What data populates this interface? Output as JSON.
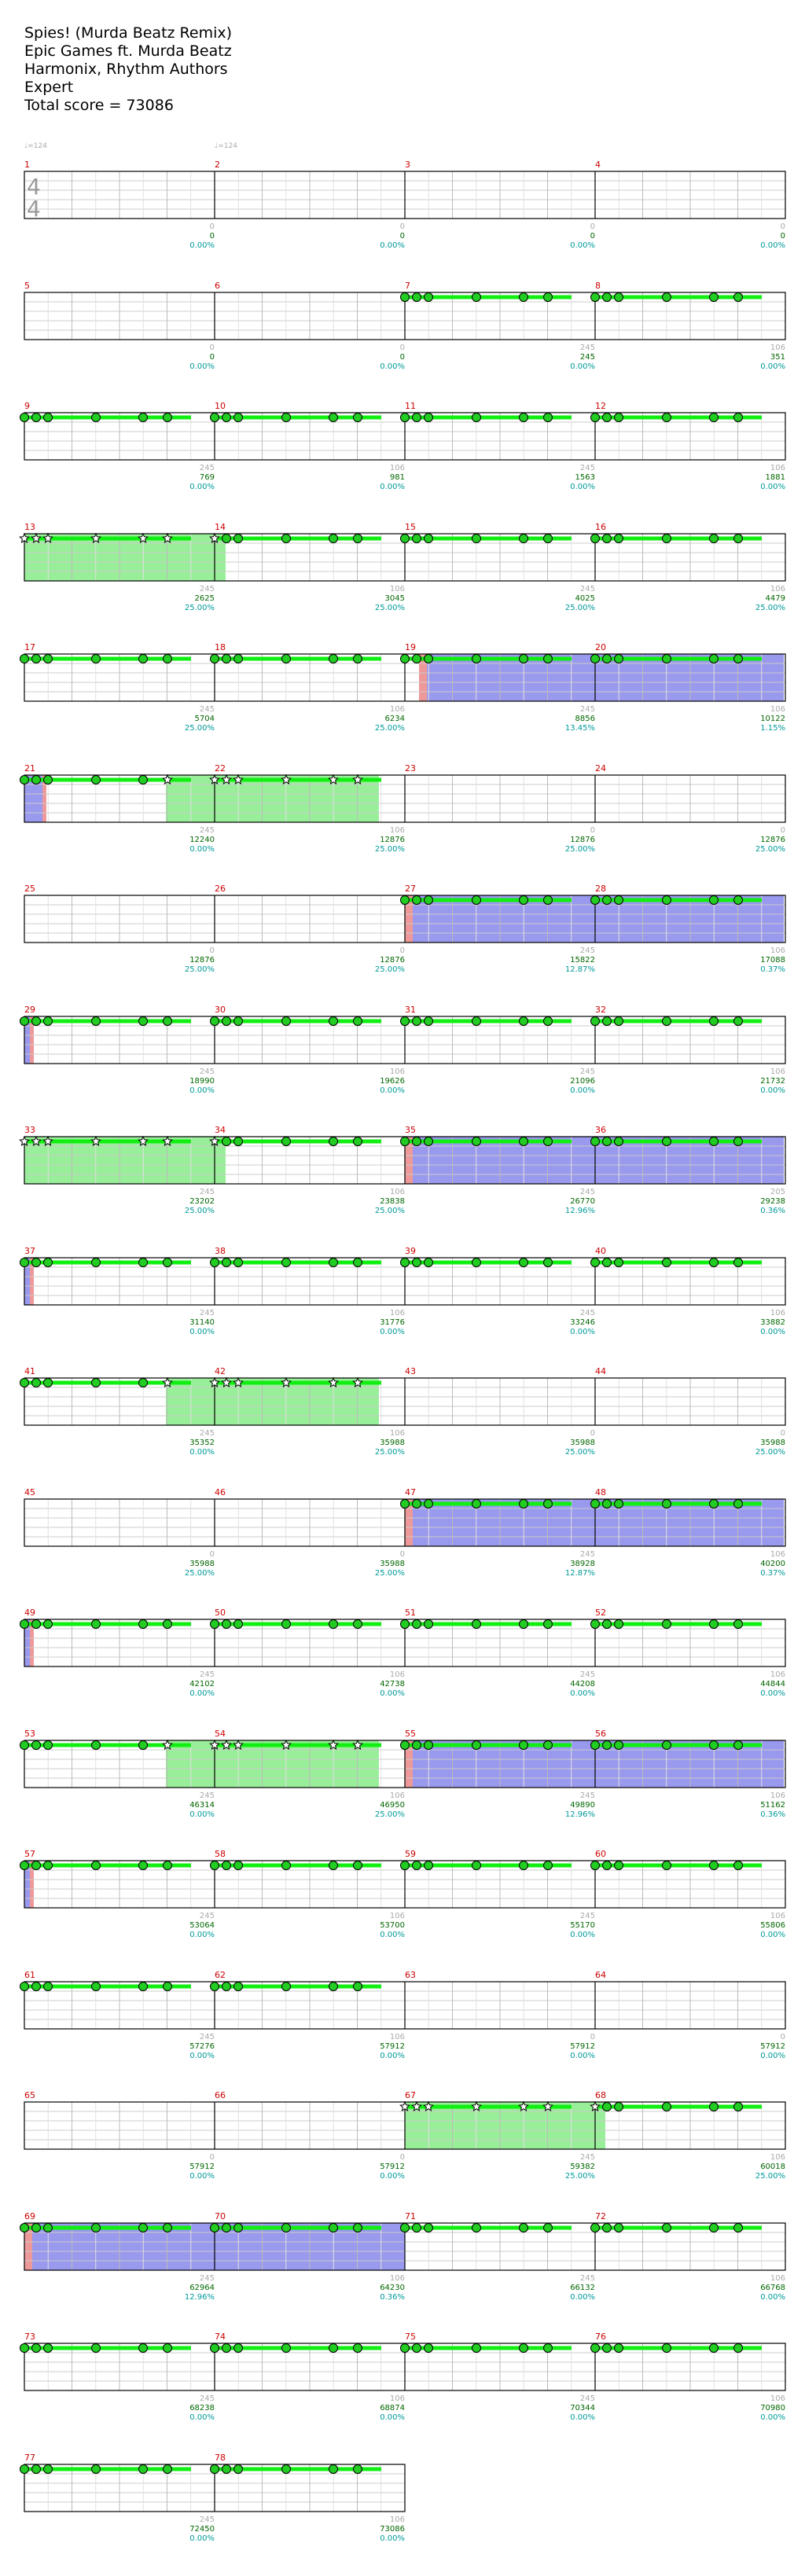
{
  "song": {
    "title": "Spies! (Murda Beatz Remix)",
    "artist": "Epic Games ft. Murda Beatz",
    "charter": "Harmonix, Rhythm Authors",
    "difficulty": "Expert",
    "total_score_label": "Total score = 73086"
  },
  "tempo_markers": [
    "♩=124",
    "♩=124"
  ],
  "time_signature": {
    "numerator": "4",
    "denominator": "4"
  },
  "colors": {
    "measure_number": "#cc0000",
    "note_fill": "#22cc22",
    "sustain": "#11ee11",
    "star_power": "#99ee99",
    "overdrive": "#9999ee",
    "overdrive_start": "#ee9999",
    "score": "#006600",
    "percent": "#009999",
    "gray": "#aaaaaa",
    "staff_line": "#cccccc"
  },
  "rows": [
    {
      "measures": [
        "1",
        "2",
        "3",
        "4"
      ],
      "markers": [
        {
          "gray": "",
          "score": "",
          "pct": ""
        },
        {
          "gray": "0",
          "score": "0",
          "pct": "0.00%"
        },
        {
          "gray": "0",
          "score": "0",
          "pct": "0.00%"
        },
        {
          "gray": "0",
          "score": "0",
          "pct": "0.00%"
        },
        {
          "gray": "0",
          "score": "0",
          "pct": "0.00%"
        }
      ]
    },
    {
      "measures": [
        "5",
        "6",
        "7",
        "8"
      ],
      "markers": [
        {
          "gray": "",
          "score": "",
          "pct": ""
        },
        {
          "gray": "0",
          "score": "0",
          "pct": "0.00%"
        },
        {
          "gray": "0",
          "score": "0",
          "pct": "0.00%"
        },
        {
          "gray": "245",
          "score": "245",
          "pct": "0.00%"
        },
        {
          "gray": "106",
          "score": "351",
          "pct": "0.00%"
        }
      ]
    },
    {
      "measures": [
        "9",
        "10",
        "11",
        "12"
      ],
      "markers": [
        {
          "gray": "",
          "score": "",
          "pct": ""
        },
        {
          "gray": "245",
          "score": "769",
          "pct": "0.00%"
        },
        {
          "gray": "106",
          "score": "981",
          "pct": "0.00%"
        },
        {
          "gray": "245",
          "score": "1563",
          "pct": "0.00%"
        },
        {
          "gray": "106",
          "score": "1881",
          "pct": "0.00%"
        }
      ]
    },
    {
      "measures": [
        "13",
        "14",
        "15",
        "16"
      ],
      "markers": [
        {
          "gray": "",
          "score": "",
          "pct": ""
        },
        {
          "gray": "245",
          "score": "2625",
          "pct": "25.00%"
        },
        {
          "gray": "106",
          "score": "3045",
          "pct": "25.00%"
        },
        {
          "gray": "245",
          "score": "4025",
          "pct": "25.00%"
        },
        {
          "gray": "106",
          "score": "4479",
          "pct": "25.00%"
        }
      ]
    },
    {
      "measures": [
        "17",
        "18",
        "19",
        "20"
      ],
      "markers": [
        {
          "gray": "",
          "score": "",
          "pct": ""
        },
        {
          "gray": "245",
          "score": "5704",
          "pct": "25.00%"
        },
        {
          "gray": "106",
          "score": "6234",
          "pct": "25.00%"
        },
        {
          "gray": "245",
          "score": "8856",
          "pct": "13.45%"
        },
        {
          "gray": "106",
          "score": "10122",
          "pct": "1.15%"
        }
      ]
    },
    {
      "measures": [
        "21",
        "22",
        "23",
        "24"
      ],
      "markers": [
        {
          "gray": "",
          "score": "",
          "pct": ""
        },
        {
          "gray": "245",
          "score": "12240",
          "pct": "0.00%"
        },
        {
          "gray": "106",
          "score": "12876",
          "pct": "25.00%"
        },
        {
          "gray": "0",
          "score": "12876",
          "pct": "25.00%"
        },
        {
          "gray": "0",
          "score": "12876",
          "pct": "25.00%"
        }
      ]
    },
    {
      "measures": [
        "25",
        "26",
        "27",
        "28"
      ],
      "markers": [
        {
          "gray": "",
          "score": "",
          "pct": ""
        },
        {
          "gray": "0",
          "score": "12876",
          "pct": "25.00%"
        },
        {
          "gray": "0",
          "score": "12876",
          "pct": "25.00%"
        },
        {
          "gray": "245",
          "score": "15822",
          "pct": "12.87%"
        },
        {
          "gray": "106",
          "score": "17088",
          "pct": "0.37%"
        }
      ]
    },
    {
      "measures": [
        "29",
        "30",
        "31",
        "32"
      ],
      "markers": [
        {
          "gray": "",
          "score": "",
          "pct": ""
        },
        {
          "gray": "245",
          "score": "18990",
          "pct": "0.00%"
        },
        {
          "gray": "106",
          "score": "19626",
          "pct": "0.00%"
        },
        {
          "gray": "245",
          "score": "21096",
          "pct": "0.00%"
        },
        {
          "gray": "106",
          "score": "21732",
          "pct": "0.00%"
        }
      ]
    },
    {
      "measures": [
        "33",
        "34",
        "35",
        "36"
      ],
      "markers": [
        {
          "gray": "",
          "score": "",
          "pct": ""
        },
        {
          "gray": "245",
          "score": "23202",
          "pct": "25.00%"
        },
        {
          "gray": "106",
          "score": "23838",
          "pct": "25.00%"
        },
        {
          "gray": "245",
          "score": "26770",
          "pct": "12.96%"
        },
        {
          "gray": "205",
          "score": "29238",
          "pct": "0.36%"
        }
      ]
    },
    {
      "measures": [
        "37",
        "38",
        "39",
        "40"
      ],
      "markers": [
        {
          "gray": "",
          "score": "",
          "pct": ""
        },
        {
          "gray": "245",
          "score": "31140",
          "pct": "0.00%"
        },
        {
          "gray": "106",
          "score": "31776",
          "pct": "0.00%"
        },
        {
          "gray": "245",
          "score": "33246",
          "pct": "0.00%"
        },
        {
          "gray": "106",
          "score": "33882",
          "pct": "0.00%"
        }
      ]
    },
    {
      "measures": [
        "41",
        "42",
        "43",
        "44"
      ],
      "markers": [
        {
          "gray": "",
          "score": "",
          "pct": ""
        },
        {
          "gray": "245",
          "score": "35352",
          "pct": "0.00%"
        },
        {
          "gray": "106",
          "score": "35988",
          "pct": "25.00%"
        },
        {
          "gray": "0",
          "score": "35988",
          "pct": "25.00%"
        },
        {
          "gray": "0",
          "score": "35988",
          "pct": "25.00%"
        }
      ]
    },
    {
      "measures": [
        "45",
        "46",
        "47",
        "48"
      ],
      "markers": [
        {
          "gray": "",
          "score": "",
          "pct": ""
        },
        {
          "gray": "0",
          "score": "35988",
          "pct": "25.00%"
        },
        {
          "gray": "0",
          "score": "35988",
          "pct": "25.00%"
        },
        {
          "gray": "245",
          "score": "38928",
          "pct": "12.87%"
        },
        {
          "gray": "106",
          "score": "40200",
          "pct": "0.37%"
        }
      ]
    },
    {
      "measures": [
        "49",
        "50",
        "51",
        "52"
      ],
      "markers": [
        {
          "gray": "",
          "score": "",
          "pct": ""
        },
        {
          "gray": "245",
          "score": "42102",
          "pct": "0.00%"
        },
        {
          "gray": "106",
          "score": "42738",
          "pct": "0.00%"
        },
        {
          "gray": "245",
          "score": "44208",
          "pct": "0.00%"
        },
        {
          "gray": "106",
          "score": "44844",
          "pct": "0.00%"
        }
      ]
    },
    {
      "measures": [
        "53",
        "54",
        "55",
        "56"
      ],
      "markers": [
        {
          "gray": "",
          "score": "",
          "pct": ""
        },
        {
          "gray": "245",
          "score": "46314",
          "pct": "0.00%"
        },
        {
          "gray": "106",
          "score": "46950",
          "pct": "25.00%"
        },
        {
          "gray": "245",
          "score": "49890",
          "pct": "12.96%"
        },
        {
          "gray": "106",
          "score": "51162",
          "pct": "0.36%"
        }
      ]
    },
    {
      "measures": [
        "57",
        "58",
        "59",
        "60"
      ],
      "markers": [
        {
          "gray": "",
          "score": "",
          "pct": ""
        },
        {
          "gray": "245",
          "score": "53064",
          "pct": "0.00%"
        },
        {
          "gray": "106",
          "score": "53700",
          "pct": "0.00%"
        },
        {
          "gray": "245",
          "score": "55170",
          "pct": "0.00%"
        },
        {
          "gray": "106",
          "score": "55806",
          "pct": "0.00%"
        }
      ]
    },
    {
      "measures": [
        "61",
        "62",
        "63",
        "64"
      ],
      "markers": [
        {
          "gray": "",
          "score": "",
          "pct": ""
        },
        {
          "gray": "245",
          "score": "57276",
          "pct": "0.00%"
        },
        {
          "gray": "106",
          "score": "57912",
          "pct": "0.00%"
        },
        {
          "gray": "0",
          "score": "57912",
          "pct": "0.00%"
        },
        {
          "gray": "0",
          "score": "57912",
          "pct": "0.00%"
        }
      ]
    },
    {
      "measures": [
        "65",
        "66",
        "67",
        "68"
      ],
      "markers": [
        {
          "gray": "",
          "score": "",
          "pct": ""
        },
        {
          "gray": "0",
          "score": "57912",
          "pct": "0.00%"
        },
        {
          "gray": "0",
          "score": "57912",
          "pct": "0.00%"
        },
        {
          "gray": "245",
          "score": "59382",
          "pct": "25.00%"
        },
        {
          "gray": "106",
          "score": "60018",
          "pct": "25.00%"
        }
      ]
    },
    {
      "measures": [
        "69",
        "70",
        "71",
        "72"
      ],
      "markers": [
        {
          "gray": "",
          "score": "",
          "pct": ""
        },
        {
          "gray": "245",
          "score": "62964",
          "pct": "12.96%"
        },
        {
          "gray": "106",
          "score": "64230",
          "pct": "0.36%"
        },
        {
          "gray": "245",
          "score": "66132",
          "pct": "0.00%"
        },
        {
          "gray": "106",
          "score": "66768",
          "pct": "0.00%"
        }
      ]
    },
    {
      "measures": [
        "73",
        "74",
        "75",
        "76"
      ],
      "markers": [
        {
          "gray": "",
          "score": "",
          "pct": ""
        },
        {
          "gray": "245",
          "score": "68238",
          "pct": "0.00%"
        },
        {
          "gray": "106",
          "score": "68874",
          "pct": "0.00%"
        },
        {
          "gray": "245",
          "score": "70344",
          "pct": "0.00%"
        },
        {
          "gray": "106",
          "score": "70980",
          "pct": "0.00%"
        }
      ]
    },
    {
      "measures": [
        "77",
        "78"
      ],
      "markers": [
        {
          "gray": "",
          "score": "",
          "pct": ""
        },
        {
          "gray": "245",
          "score": "72450",
          "pct": "0.00%"
        },
        {
          "gray": "106",
          "score": "73086",
          "pct": "0.00%"
        }
      ]
    }
  ]
}
